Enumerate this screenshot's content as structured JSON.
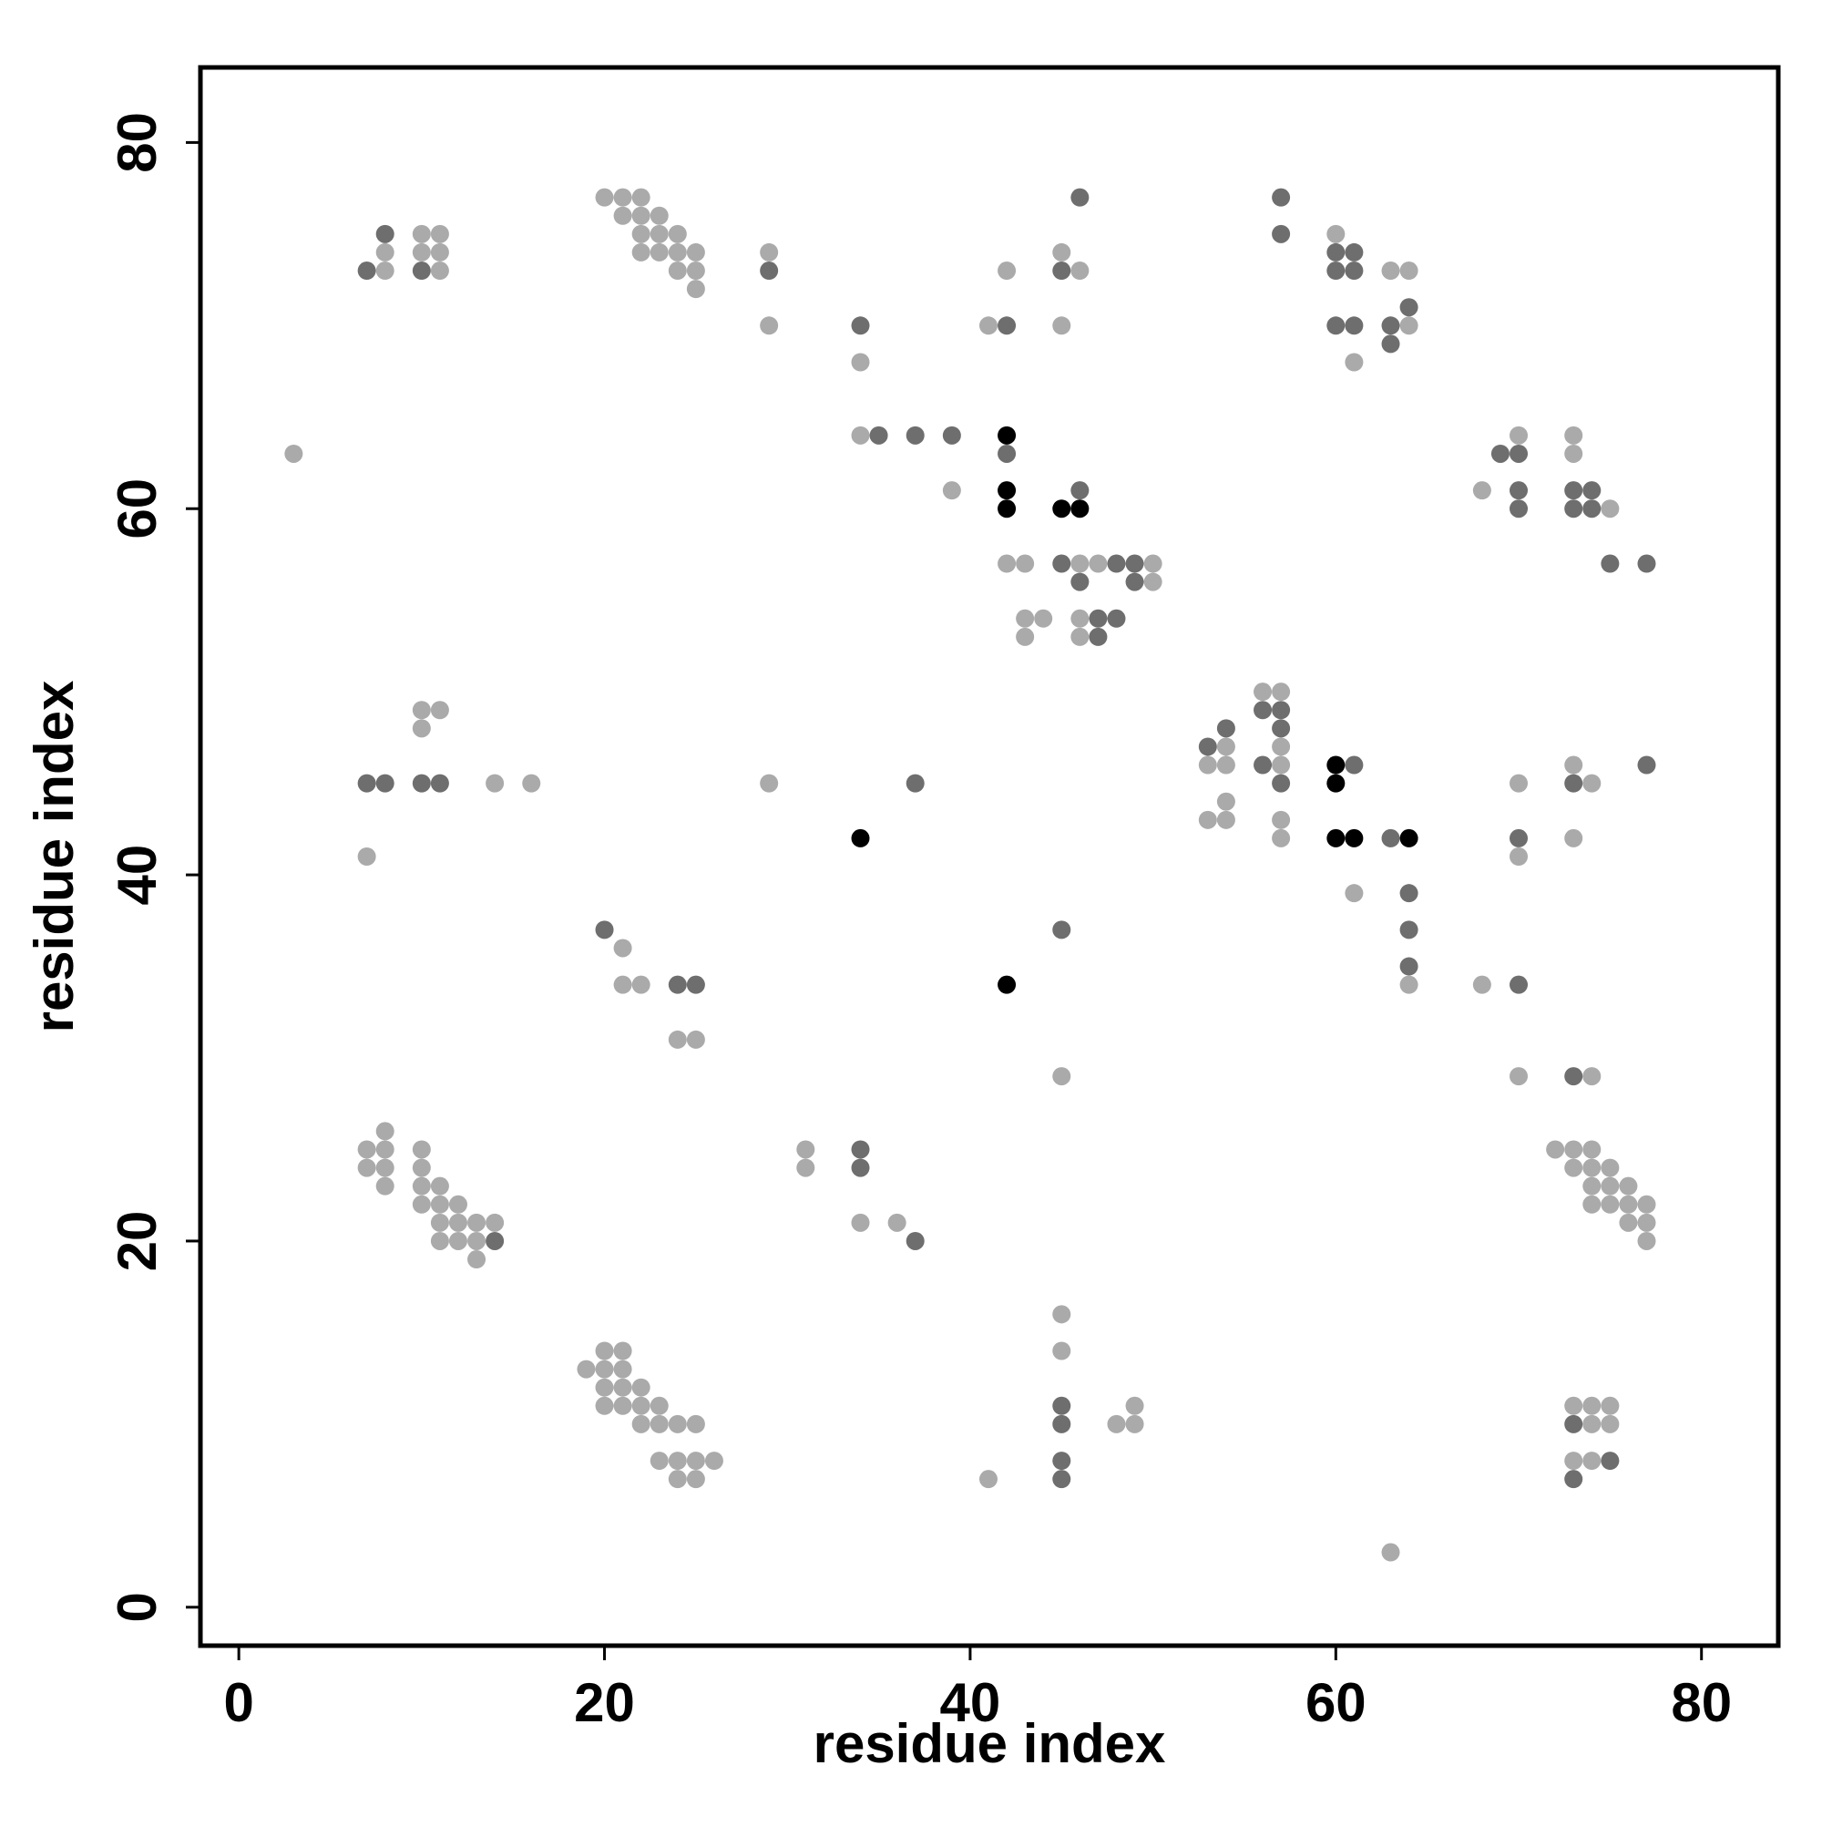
{
  "chart_data": {
    "type": "scatter",
    "x_label": "residue index",
    "y_label": "residue index",
    "xlim": [
      -2.1,
      84.2
    ],
    "ylim": [
      -2.1,
      84.1
    ],
    "xticks": [
      0,
      20,
      40,
      60,
      80
    ],
    "yticks": [
      0,
      20,
      40,
      60,
      80
    ],
    "grid": false,
    "series": [
      {
        "color": "#aaaaaa",
        "x": [
          20,
          21,
          22,
          21,
          22,
          23,
          10,
          11,
          22,
          23,
          24,
          60,
          8,
          10,
          11,
          22,
          23,
          24,
          25,
          29,
          45,
          8,
          11,
          24,
          25,
          42,
          46,
          63,
          64,
          25,
          29,
          41,
          45,
          64,
          34,
          61,
          34,
          70,
          73,
          3,
          73,
          39,
          68,
          75,
          42,
          43,
          46,
          47,
          50,
          50,
          43,
          44,
          46,
          43,
          46,
          56,
          57,
          10,
          11,
          10,
          54,
          57,
          53,
          54,
          57,
          73,
          14,
          16,
          29,
          70,
          74,
          54,
          53,
          54,
          57,
          57,
          73,
          7,
          70,
          61,
          21,
          21,
          22,
          64,
          68,
          24,
          25,
          45,
          70,
          74,
          8,
          7,
          8,
          10,
          31,
          72,
          73,
          74,
          7,
          8,
          10,
          31,
          73,
          74,
          75,
          8,
          10,
          11,
          74,
          75,
          76,
          10,
          11,
          12,
          74,
          75,
          76,
          77,
          11,
          12,
          13,
          14,
          34,
          36,
          76,
          77,
          11,
          12,
          13,
          77,
          13,
          45,
          20,
          21,
          45,
          19,
          20,
          21,
          20,
          21,
          22,
          20,
          21,
          22,
          23,
          49,
          73,
          74,
          75,
          22,
          23,
          24,
          25,
          48,
          49,
          74,
          75,
          23,
          24,
          25,
          26,
          73,
          74,
          24,
          25,
          41,
          63
        ],
        "y": [
          77,
          77,
          77,
          76,
          76,
          76,
          75,
          75,
          75,
          75,
          75,
          75,
          74,
          74,
          74,
          74,
          74,
          74,
          74,
          74,
          74,
          73,
          73,
          73,
          73,
          73,
          73,
          73,
          73,
          72,
          70,
          70,
          70,
          70,
          68,
          68,
          64,
          64,
          64,
          63,
          63,
          61,
          61,
          60,
          57,
          57,
          57,
          57,
          57,
          56,
          54,
          54,
          54,
          53,
          53,
          50,
          50,
          49,
          49,
          48,
          47,
          47,
          46,
          46,
          46,
          46,
          45,
          45,
          45,
          45,
          45,
          44,
          43,
          43,
          43,
          42,
          42,
          41,
          41,
          39,
          36,
          34,
          34,
          34,
          34,
          31,
          31,
          29,
          29,
          29,
          26,
          25,
          25,
          25,
          25,
          25,
          25,
          25,
          24,
          24,
          24,
          24,
          24,
          24,
          24,
          23,
          23,
          23,
          23,
          23,
          23,
          22,
          22,
          22,
          22,
          22,
          22,
          22,
          21,
          21,
          21,
          21,
          21,
          21,
          21,
          21,
          20,
          20,
          20,
          20,
          19,
          16,
          14,
          14,
          14,
          13,
          13,
          13,
          12,
          12,
          12,
          11,
          11,
          11,
          11,
          11,
          11,
          11,
          11,
          10,
          10,
          10,
          10,
          10,
          10,
          10,
          10,
          8,
          8,
          8,
          8,
          8,
          8,
          7,
          7,
          7,
          3
        ]
      },
      {
        "color": "#6e6e6e",
        "x": [
          46,
          57,
          8,
          57,
          60,
          61,
          7,
          10,
          29,
          45,
          60,
          61,
          64,
          34,
          42,
          60,
          61,
          63,
          63,
          35,
          37,
          39,
          42,
          69,
          70,
          46,
          70,
          73,
          74,
          70,
          73,
          74,
          45,
          48,
          49,
          75,
          77,
          46,
          49,
          47,
          48,
          47,
          56,
          57,
          54,
          57,
          53,
          56,
          61,
          77,
          7,
          8,
          10,
          11,
          37,
          57,
          73,
          63,
          70,
          64,
          20,
          45,
          64,
          64,
          24,
          25,
          70,
          73,
          34,
          34,
          14,
          37,
          45,
          45,
          73,
          45,
          75,
          45,
          73
        ],
        "y": [
          77,
          77,
          75,
          75,
          74,
          74,
          73,
          73,
          73,
          73,
          73,
          73,
          71,
          70,
          70,
          70,
          70,
          70,
          69,
          64,
          64,
          64,
          63,
          63,
          63,
          61,
          61,
          61,
          61,
          60,
          60,
          60,
          57,
          57,
          57,
          57,
          57,
          56,
          56,
          54,
          54,
          53,
          49,
          49,
          48,
          48,
          47,
          46,
          46,
          46,
          45,
          45,
          45,
          45,
          45,
          45,
          45,
          42,
          42,
          39,
          37,
          37,
          37,
          35,
          34,
          34,
          34,
          29,
          25,
          24,
          20,
          20,
          11,
          10,
          10,
          8,
          8,
          7,
          7
        ]
      },
      {
        "color": "#000000",
        "x": [
          42,
          42,
          42,
          45,
          46,
          60,
          60,
          34,
          60,
          61,
          64,
          42
        ],
        "y": [
          64,
          61,
          60,
          60,
          60,
          46,
          45,
          42,
          42,
          42,
          42,
          34
        ]
      }
    ]
  }
}
